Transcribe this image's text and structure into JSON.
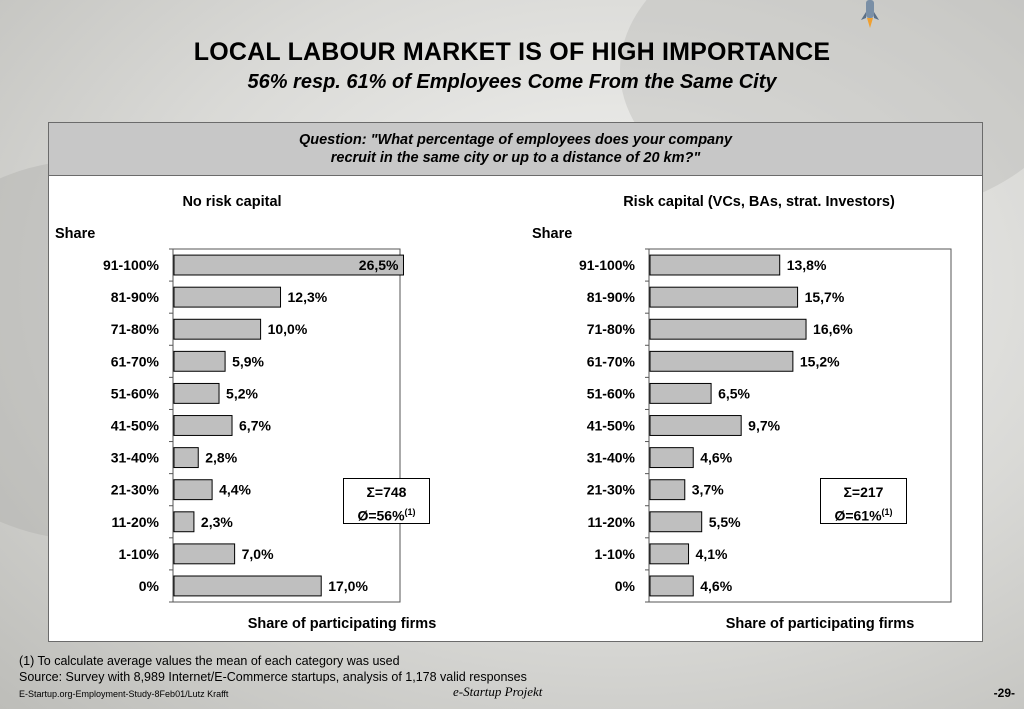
{
  "header": {
    "title": "LOCAL LABOUR MARKET IS OF HIGH IMPORTANCE",
    "subtitle": "56% resp. 61% of Employees Come From the Same City"
  },
  "question": {
    "line1": "Question: \"What percentage of employees does your company",
    "line2": "recruit in the same city or up to a distance of 20 km?\""
  },
  "chart_data": [
    {
      "type": "bar",
      "orientation": "horizontal",
      "title": "No risk capital",
      "ylabel": "Share",
      "xlabel": "Share of participating firms",
      "categories": [
        "91-100%",
        "81-90%",
        "71-80%",
        "61-70%",
        "51-60%",
        "41-50%",
        "31-40%",
        "21-30%",
        "11-20%",
        "1-10%",
        "0%"
      ],
      "values": [
        26.5,
        12.3,
        10.0,
        5.9,
        5.2,
        6.7,
        2.8,
        4.4,
        2.3,
        7.0,
        17.0
      ],
      "value_labels": [
        "26,5%",
        "12,3%",
        "10,0%",
        "5,9%",
        "5,2%",
        "6,7%",
        "2,8%",
        "4,4%",
        "2,3%",
        "7,0%",
        "17,0%"
      ],
      "bar_color": "#bfbfbf",
      "summary": {
        "sigma": "Σ=748",
        "mean": "Ø=56%",
        "note": "(1)"
      }
    },
    {
      "type": "bar",
      "orientation": "horizontal",
      "title": "Risk capital (VCs, BAs, strat. Investors)",
      "ylabel": "Share",
      "xlabel": "Share of participating firms",
      "categories": [
        "91-100%",
        "81-90%",
        "71-80%",
        "61-70%",
        "51-60%",
        "41-50%",
        "31-40%",
        "21-30%",
        "11-20%",
        "1-10%",
        "0%"
      ],
      "values": [
        13.8,
        15.7,
        16.6,
        15.2,
        6.5,
        9.7,
        4.6,
        3.7,
        5.5,
        4.1,
        4.6
      ],
      "value_labels": [
        "13,8%",
        "15,7%",
        "16,6%",
        "15,2%",
        "6,5%",
        "9,7%",
        "4,6%",
        "3,7%",
        "5,5%",
        "4,1%",
        "4,6%"
      ],
      "bar_color": "#bfbfbf",
      "summary": {
        "sigma": "Σ=217",
        "mean": "Ø=61%",
        "note": "(1)"
      }
    }
  ],
  "footer": {
    "note1": "(1) To calculate average values the mean of each category was used",
    "source": "Source: Survey with 8,989 Internet/E-Commerce startups, analysis of 1,178 valid responses",
    "credit": "E-Startup.org-Employment-Study-8Feb01/Lutz Krafft",
    "brand": "e-Startup Projekt",
    "page": "-29-"
  }
}
